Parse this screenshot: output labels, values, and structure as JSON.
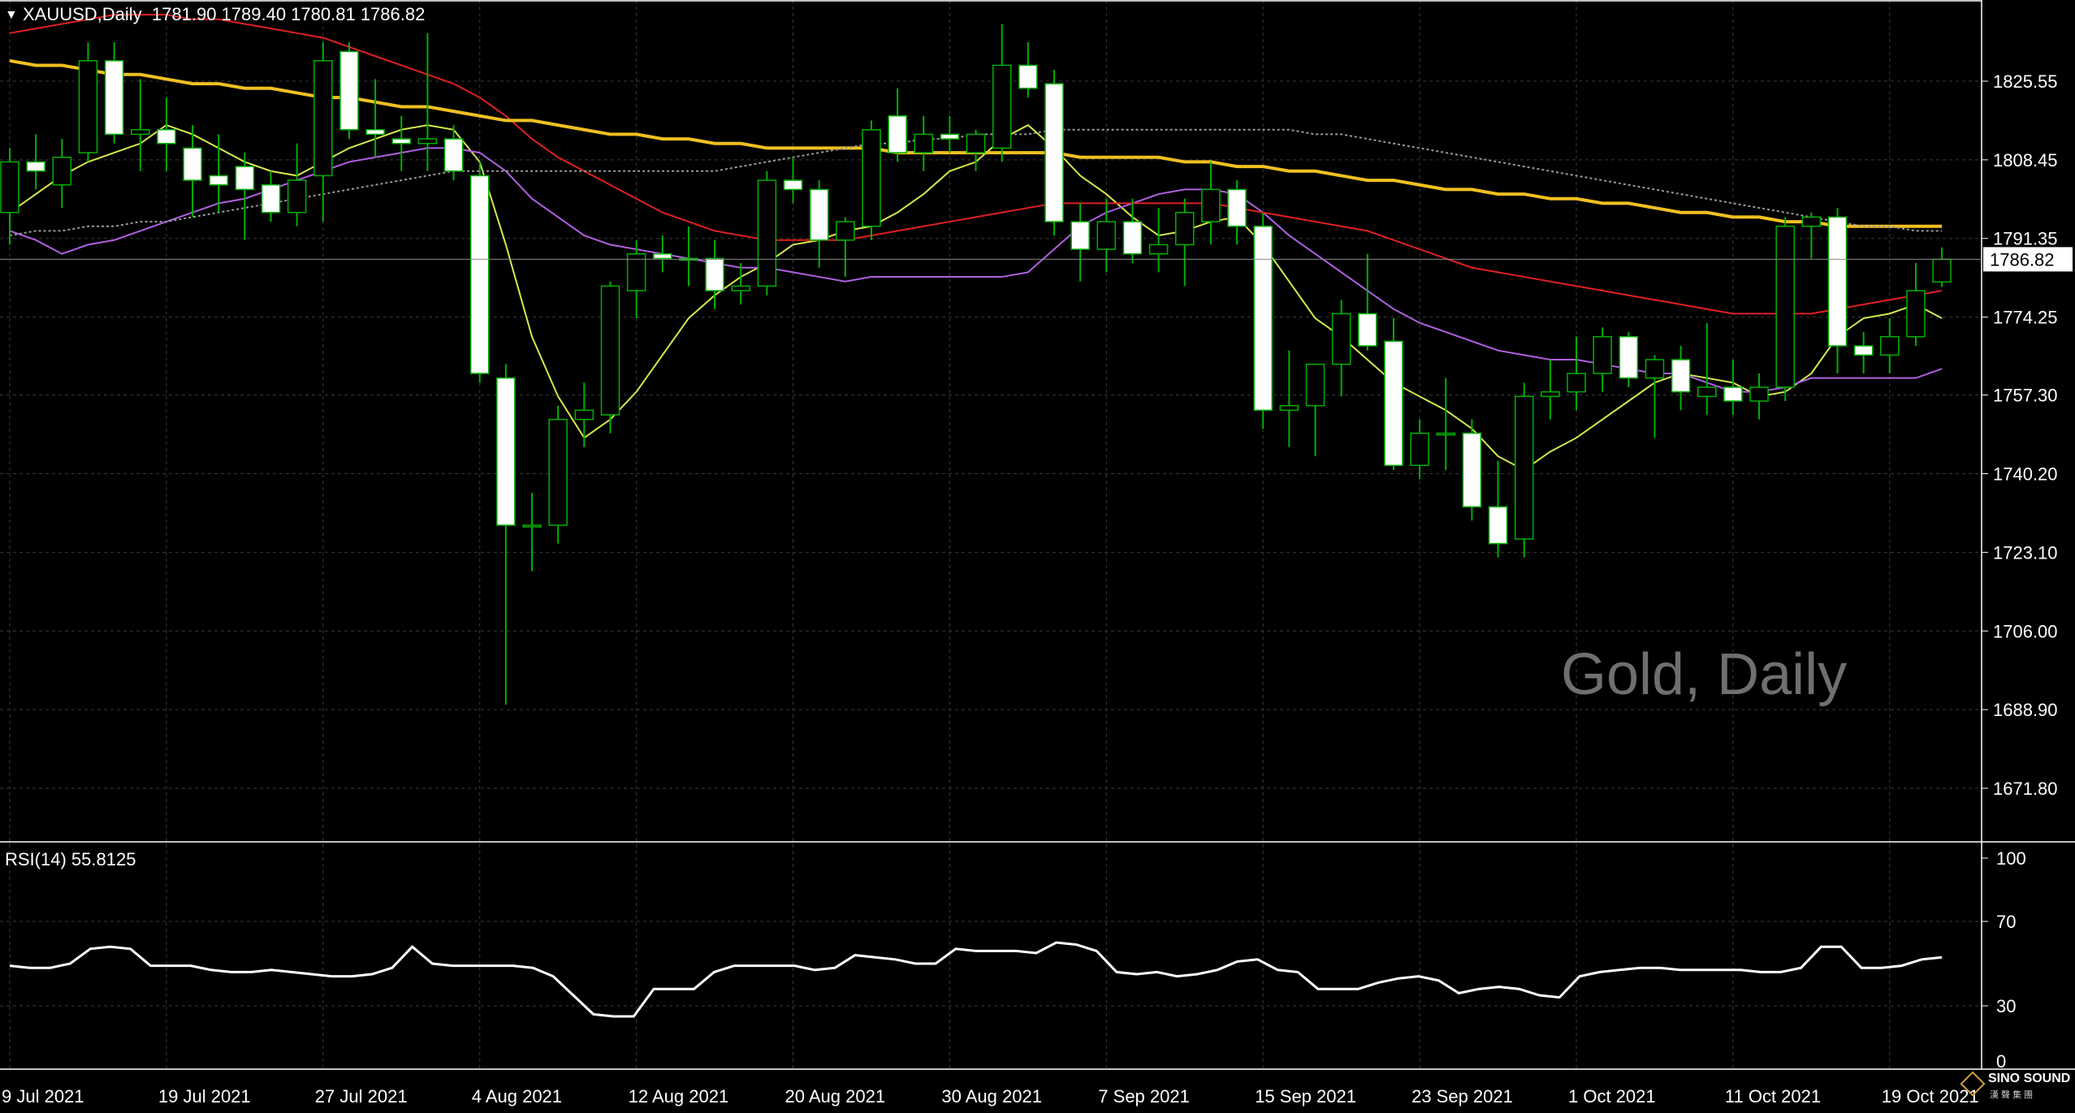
{
  "header": {
    "symbol": "XAUUSD,Daily",
    "ohlc": "1781.90 1789.40 1780.81 1786.82",
    "collapse_icon": "triangle-down-icon"
  },
  "watermark": "Gold, Daily",
  "rsi_label": "RSI(14) 55.8125",
  "logo": {
    "name": "SINO SOUND",
    "sub": "漢 聲 集 團",
    "icon": "diamond-logo-icon"
  },
  "colors": {
    "background": "#000000",
    "grid": "#3a3a3a",
    "bull_candle": "#00b000",
    "bear_candle": "#ffffff",
    "ma_fast": "#d8e84c",
    "ma_mid": "#b060e0",
    "ma_slow_red": "#e02020",
    "ma_gold": "#f0c020",
    "ma_grey": "#9a9a9a",
    "rsi_line": "#ffffff",
    "price_tag_bg": "#ffffff",
    "price_tag_text": "#000000"
  },
  "chart_data": [
    {
      "type": "candlestick",
      "title": "XAUUSD,Daily",
      "ylim": [
        1660.0,
        1845.0
      ],
      "y_ticks": [
        "1825.55",
        "1808.45",
        "1791.35",
        "1774.25",
        "1757.30",
        "1740.20",
        "1723.10",
        "1706.00",
        "1688.90",
        "1671.80"
      ],
      "current_price": "1786.82",
      "x_ticks": [
        {
          "label": "9 Jul 2021",
          "index": 0
        },
        {
          "label": "19 Jul 2021",
          "index": 6
        },
        {
          "label": "27 Jul 2021",
          "index": 12
        },
        {
          "label": "4 Aug 2021",
          "index": 18
        },
        {
          "label": "12 Aug 2021",
          "index": 24
        },
        {
          "label": "20 Aug 2021",
          "index": 30
        },
        {
          "label": "30 Aug 2021",
          "index": 36
        },
        {
          "label": "7 Sep 2021",
          "index": 42
        },
        {
          "label": "15 Sep 2021",
          "index": 48
        },
        {
          "label": "23 Sep 2021",
          "index": 54
        },
        {
          "label": "1 Oct 2021",
          "index": 60
        },
        {
          "label": "11 Oct 2021",
          "index": 66
        },
        {
          "label": "19 Oct 2021",
          "index": 72
        }
      ],
      "candles": [
        {
          "o": 1797.0,
          "h": 1811.0,
          "l": 1790.0,
          "c": 1808.0
        },
        {
          "o": 1808.0,
          "h": 1814.0,
          "l": 1802.0,
          "c": 1806.0
        },
        {
          "o": 1803.0,
          "h": 1813.0,
          "l": 1798.0,
          "c": 1809.0
        },
        {
          "o": 1810.0,
          "h": 1834.0,
          "l": 1808.0,
          "c": 1830.0
        },
        {
          "o": 1830.0,
          "h": 1834.0,
          "l": 1812.0,
          "c": 1814.0
        },
        {
          "o": 1814.0,
          "h": 1826.0,
          "l": 1806.0,
          "c": 1815.0
        },
        {
          "o": 1815.0,
          "h": 1822.0,
          "l": 1806.0,
          "c": 1812.0
        },
        {
          "o": 1811.0,
          "h": 1816.0,
          "l": 1796.0,
          "c": 1804.0
        },
        {
          "o": 1805.0,
          "h": 1814.0,
          "l": 1797.0,
          "c": 1803.0
        },
        {
          "o": 1807.0,
          "h": 1810.0,
          "l": 1791.0,
          "c": 1802.0
        },
        {
          "o": 1803.0,
          "h": 1806.0,
          "l": 1795.0,
          "c": 1797.0
        },
        {
          "o": 1797.0,
          "h": 1812.0,
          "l": 1794.0,
          "c": 1804.0
        },
        {
          "o": 1805.0,
          "h": 1834.0,
          "l": 1795.0,
          "c": 1830.0
        },
        {
          "o": 1832.0,
          "h": 1834.0,
          "l": 1813.0,
          "c": 1815.0
        },
        {
          "o": 1815.0,
          "h": 1826.0,
          "l": 1809.0,
          "c": 1814.0
        },
        {
          "o": 1813.0,
          "h": 1818.0,
          "l": 1806.0,
          "c": 1812.0
        },
        {
          "o": 1812.0,
          "h": 1836.0,
          "l": 1806.0,
          "c": 1813.0
        },
        {
          "o": 1813.0,
          "h": 1816.0,
          "l": 1804.0,
          "c": 1806.0
        },
        {
          "o": 1805.0,
          "h": 1808.0,
          "l": 1760.0,
          "c": 1762.0
        },
        {
          "o": 1761.0,
          "h": 1764.0,
          "l": 1690.0,
          "c": 1729.0
        },
        {
          "o": 1729.0,
          "h": 1736.0,
          "l": 1719.0,
          "c": 1729.0
        },
        {
          "o": 1729.0,
          "h": 1755.0,
          "l": 1725.0,
          "c": 1752.0
        },
        {
          "o": 1752.0,
          "h": 1760.0,
          "l": 1746.0,
          "c": 1754.0
        },
        {
          "o": 1753.0,
          "h": 1782.0,
          "l": 1749.0,
          "c": 1781.0
        },
        {
          "o": 1780.0,
          "h": 1791.0,
          "l": 1774.0,
          "c": 1788.0
        },
        {
          "o": 1788.0,
          "h": 1792.0,
          "l": 1784.0,
          "c": 1787.0
        },
        {
          "o": 1787.0,
          "h": 1794.0,
          "l": 1781.0,
          "c": 1787.0
        },
        {
          "o": 1787.0,
          "h": 1791.0,
          "l": 1776.0,
          "c": 1780.0
        },
        {
          "o": 1780.0,
          "h": 1786.0,
          "l": 1777.0,
          "c": 1781.0
        },
        {
          "o": 1781.0,
          "h": 1806.0,
          "l": 1779.0,
          "c": 1804.0
        },
        {
          "o": 1804.0,
          "h": 1809.0,
          "l": 1799.0,
          "c": 1802.0
        },
        {
          "o": 1802.0,
          "h": 1804.0,
          "l": 1785.0,
          "c": 1791.0
        },
        {
          "o": 1791.0,
          "h": 1796.0,
          "l": 1783.0,
          "c": 1795.0
        },
        {
          "o": 1794.0,
          "h": 1817.0,
          "l": 1791.0,
          "c": 1815.0
        },
        {
          "o": 1818.0,
          "h": 1824.0,
          "l": 1808.0,
          "c": 1810.0
        },
        {
          "o": 1810.0,
          "h": 1818.0,
          "l": 1806.0,
          "c": 1814.0
        },
        {
          "o": 1814.0,
          "h": 1818.0,
          "l": 1810.0,
          "c": 1813.0
        },
        {
          "o": 1810.0,
          "h": 1815.0,
          "l": 1806.0,
          "c": 1814.0
        },
        {
          "o": 1811.0,
          "h": 1838.0,
          "l": 1808.0,
          "c": 1829.0
        },
        {
          "o": 1829.0,
          "h": 1834.0,
          "l": 1822.0,
          "c": 1824.0
        },
        {
          "o": 1825.0,
          "h": 1828.0,
          "l": 1792.0,
          "c": 1795.0
        },
        {
          "o": 1795.0,
          "h": 1799.0,
          "l": 1782.0,
          "c": 1789.0
        },
        {
          "o": 1789.0,
          "h": 1800.0,
          "l": 1784.0,
          "c": 1795.0
        },
        {
          "o": 1795.0,
          "h": 1800.0,
          "l": 1786.0,
          "c": 1788.0
        },
        {
          "o": 1788.0,
          "h": 1798.0,
          "l": 1784.0,
          "c": 1790.0
        },
        {
          "o": 1790.0,
          "h": 1800.0,
          "l": 1781.0,
          "c": 1797.0
        },
        {
          "o": 1795.0,
          "h": 1808.0,
          "l": 1790.0,
          "c": 1802.0
        },
        {
          "o": 1802.0,
          "h": 1804.0,
          "l": 1790.0,
          "c": 1794.0
        },
        {
          "o": 1794.0,
          "h": 1797.0,
          "l": 1750.0,
          "c": 1754.0
        },
        {
          "o": 1754.0,
          "h": 1767.0,
          "l": 1746.0,
          "c": 1755.0
        },
        {
          "o": 1755.0,
          "h": 1764.0,
          "l": 1744.0,
          "c": 1764.0
        },
        {
          "o": 1764.0,
          "h": 1778.0,
          "l": 1757.0,
          "c": 1775.0
        },
        {
          "o": 1775.0,
          "h": 1788.0,
          "l": 1767.0,
          "c": 1768.0
        },
        {
          "o": 1769.0,
          "h": 1774.0,
          "l": 1741.0,
          "c": 1742.0
        },
        {
          "o": 1742.0,
          "h": 1752.0,
          "l": 1739.0,
          "c": 1749.0
        },
        {
          "o": 1749.0,
          "h": 1761.0,
          "l": 1741.0,
          "c": 1749.0
        },
        {
          "o": 1749.0,
          "h": 1752.0,
          "l": 1730.0,
          "c": 1733.0
        },
        {
          "o": 1733.0,
          "h": 1743.0,
          "l": 1722.0,
          "c": 1725.0
        },
        {
          "o": 1726.0,
          "h": 1760.0,
          "l": 1722.0,
          "c": 1757.0
        },
        {
          "o": 1757.0,
          "h": 1765.0,
          "l": 1752.0,
          "c": 1758.0
        },
        {
          "o": 1758.0,
          "h": 1770.0,
          "l": 1754.0,
          "c": 1762.0
        },
        {
          "o": 1762.0,
          "h": 1772.0,
          "l": 1758.0,
          "c": 1770.0
        },
        {
          "o": 1770.0,
          "h": 1771.0,
          "l": 1759.0,
          "c": 1761.0
        },
        {
          "o": 1761.0,
          "h": 1766.0,
          "l": 1748.0,
          "c": 1765.0
        },
        {
          "o": 1765.0,
          "h": 1768.0,
          "l": 1754.0,
          "c": 1758.0
        },
        {
          "o": 1757.0,
          "h": 1773.0,
          "l": 1753.0,
          "c": 1759.0
        },
        {
          "o": 1759.0,
          "h": 1765.0,
          "l": 1753.0,
          "c": 1756.0
        },
        {
          "o": 1756.0,
          "h": 1762.0,
          "l": 1752.0,
          "c": 1759.0
        },
        {
          "o": 1759.0,
          "h": 1796.0,
          "l": 1756.0,
          "c": 1794.0
        },
        {
          "o": 1794.0,
          "h": 1797.0,
          "l": 1787.0,
          "c": 1796.0
        },
        {
          "o": 1796.0,
          "h": 1798.0,
          "l": 1762.0,
          "c": 1768.0
        },
        {
          "o": 1768.0,
          "h": 1771.0,
          "l": 1762.0,
          "c": 1766.0
        },
        {
          "o": 1766.0,
          "h": 1774.0,
          "l": 1762.0,
          "c": 1770.0
        },
        {
          "o": 1770.0,
          "h": 1786.0,
          "l": 1768.0,
          "c": 1780.0
        },
        {
          "o": 1781.9,
          "h": 1789.4,
          "l": 1780.81,
          "c": 1786.82
        }
      ],
      "moving_averages": [
        {
          "color_key": "ma_fast",
          "values": [
            1797,
            1801,
            1805,
            1808,
            1810,
            1812,
            1816,
            1814,
            1811,
            1808,
            1806,
            1805,
            1808,
            1811,
            1813,
            1815,
            1816,
            1815,
            1808,
            1790,
            1770,
            1757,
            1748,
            1752,
            1758,
            1766,
            1774,
            1779,
            1783,
            1786,
            1790,
            1791,
            1793,
            1794,
            1797,
            1801,
            1806,
            1808,
            1813,
            1816,
            1811,
            1805,
            1801,
            1796,
            1792,
            1793,
            1795,
            1796,
            1790,
            1782,
            1774,
            1770,
            1765,
            1760,
            1757,
            1754,
            1750,
            1744,
            1741,
            1745,
            1748,
            1752,
            1756,
            1760,
            1762,
            1761,
            1760,
            1757,
            1758,
            1762,
            1770,
            1774,
            1775,
            1777,
            1774
          ]
        },
        {
          "color_key": "ma_mid",
          "values": [
            1793,
            1791,
            1788,
            1790,
            1791,
            1793,
            1795,
            1797,
            1799,
            1800,
            1802,
            1804,
            1806,
            1808,
            1809,
            1810,
            1811,
            1811,
            1810,
            1806,
            1800,
            1796,
            1792,
            1790,
            1789,
            1788,
            1787,
            1786,
            1785,
            1785,
            1784,
            1783,
            1782,
            1783,
            1783,
            1783,
            1783,
            1783,
            1783,
            1784,
            1789,
            1794,
            1797,
            1799,
            1801,
            1802,
            1802,
            1801,
            1797,
            1792,
            1788,
            1784,
            1780,
            1776,
            1773,
            1771,
            1769,
            1767,
            1766,
            1765,
            1765,
            1764,
            1763,
            1762,
            1762,
            1760,
            1758,
            1758,
            1759,
            1761,
            1761,
            1761,
            1761,
            1761,
            1763
          ]
        },
        {
          "color_key": "ma_slow_red",
          "values": [
            1836,
            1837,
            1838,
            1839,
            1840,
            1840,
            1840,
            1839,
            1839,
            1838,
            1837,
            1836,
            1835,
            1833,
            1831,
            1829,
            1827,
            1825,
            1822,
            1818,
            1813,
            1809,
            1806,
            1803,
            1800,
            1797,
            1795,
            1793,
            1792,
            1791,
            1791,
            1791,
            1791,
            1792,
            1793,
            1794,
            1795,
            1796,
            1797,
            1798,
            1799,
            1799,
            1799,
            1799,
            1799,
            1799,
            1799,
            1798,
            1797,
            1796,
            1795,
            1794,
            1793,
            1791,
            1789,
            1787,
            1785,
            1784,
            1783,
            1782,
            1781,
            1780,
            1779,
            1778,
            1777,
            1776,
            1775,
            1775,
            1775,
            1775,
            1776,
            1777,
            1778,
            1779,
            1780
          ]
        },
        {
          "color_key": "ma_gold",
          "values": [
            1830,
            1829,
            1829,
            1828,
            1827,
            1827,
            1826,
            1825,
            1825,
            1824,
            1824,
            1823,
            1822,
            1822,
            1821,
            1820,
            1820,
            1819,
            1818,
            1817,
            1817,
            1816,
            1815,
            1814,
            1814,
            1813,
            1813,
            1812,
            1812,
            1811,
            1811,
            1811,
            1811,
            1811,
            1810,
            1810,
            1810,
            1810,
            1810,
            1810,
            1810,
            1809,
            1809,
            1809,
            1809,
            1808,
            1808,
            1807,
            1807,
            1806,
            1806,
            1805,
            1804,
            1804,
            1803,
            1802,
            1802,
            1801,
            1801,
            1800,
            1800,
            1799,
            1799,
            1798,
            1797,
            1797,
            1796,
            1796,
            1795,
            1795,
            1794,
            1794,
            1794,
            1794,
            1794
          ]
        },
        {
          "color_key": "ma_grey",
          "dashed": true,
          "values": [
            1792,
            1793,
            1793,
            1794,
            1794,
            1795,
            1795,
            1796,
            1797,
            1798,
            1799,
            1800,
            1801,
            1802,
            1803,
            1804,
            1805,
            1806,
            1806,
            1806,
            1806,
            1806,
            1806,
            1806,
            1806,
            1806,
            1806,
            1806,
            1807,
            1808,
            1809,
            1810,
            1811,
            1812,
            1812,
            1813,
            1813,
            1814,
            1814,
            1814,
            1815,
            1815,
            1815,
            1815,
            1815,
            1815,
            1815,
            1815,
            1815,
            1815,
            1814,
            1814,
            1813,
            1812,
            1811,
            1810,
            1809,
            1808,
            1807,
            1806,
            1805,
            1804,
            1803,
            1802,
            1801,
            1800,
            1799,
            1798,
            1797,
            1796,
            1795,
            1794,
            1794,
            1793,
            1793
          ]
        }
      ]
    },
    {
      "type": "line",
      "title": "RSI(14) 55.8125",
      "ylim": [
        0,
        100
      ],
      "y_ticks": [
        100,
        70,
        30,
        0
      ],
      "series": [
        {
          "values": [
            49,
            48,
            48,
            50,
            57,
            58,
            57,
            49,
            49,
            49,
            47,
            46,
            46,
            47,
            46,
            45,
            44,
            44,
            45,
            48,
            58,
            50,
            49,
            49,
            49,
            49,
            48,
            44,
            35,
            26,
            25,
            25,
            38,
            38,
            38,
            46,
            49,
            49,
            49,
            49,
            47,
            48,
            54,
            53,
            52,
            50,
            50,
            57,
            56,
            56,
            56,
            55,
            60,
            59,
            56,
            46,
            45,
            46,
            44,
            45,
            47,
            51,
            52,
            47,
            46,
            38,
            38,
            38,
            41,
            43,
            44,
            42,
            36,
            38,
            39,
            38,
            35,
            34,
            44,
            46,
            47,
            48,
            48,
            47,
            47,
            47,
            47,
            46,
            46,
            48,
            58,
            58,
            48,
            48,
            49,
            52,
            53
          ]
        }
      ]
    }
  ]
}
